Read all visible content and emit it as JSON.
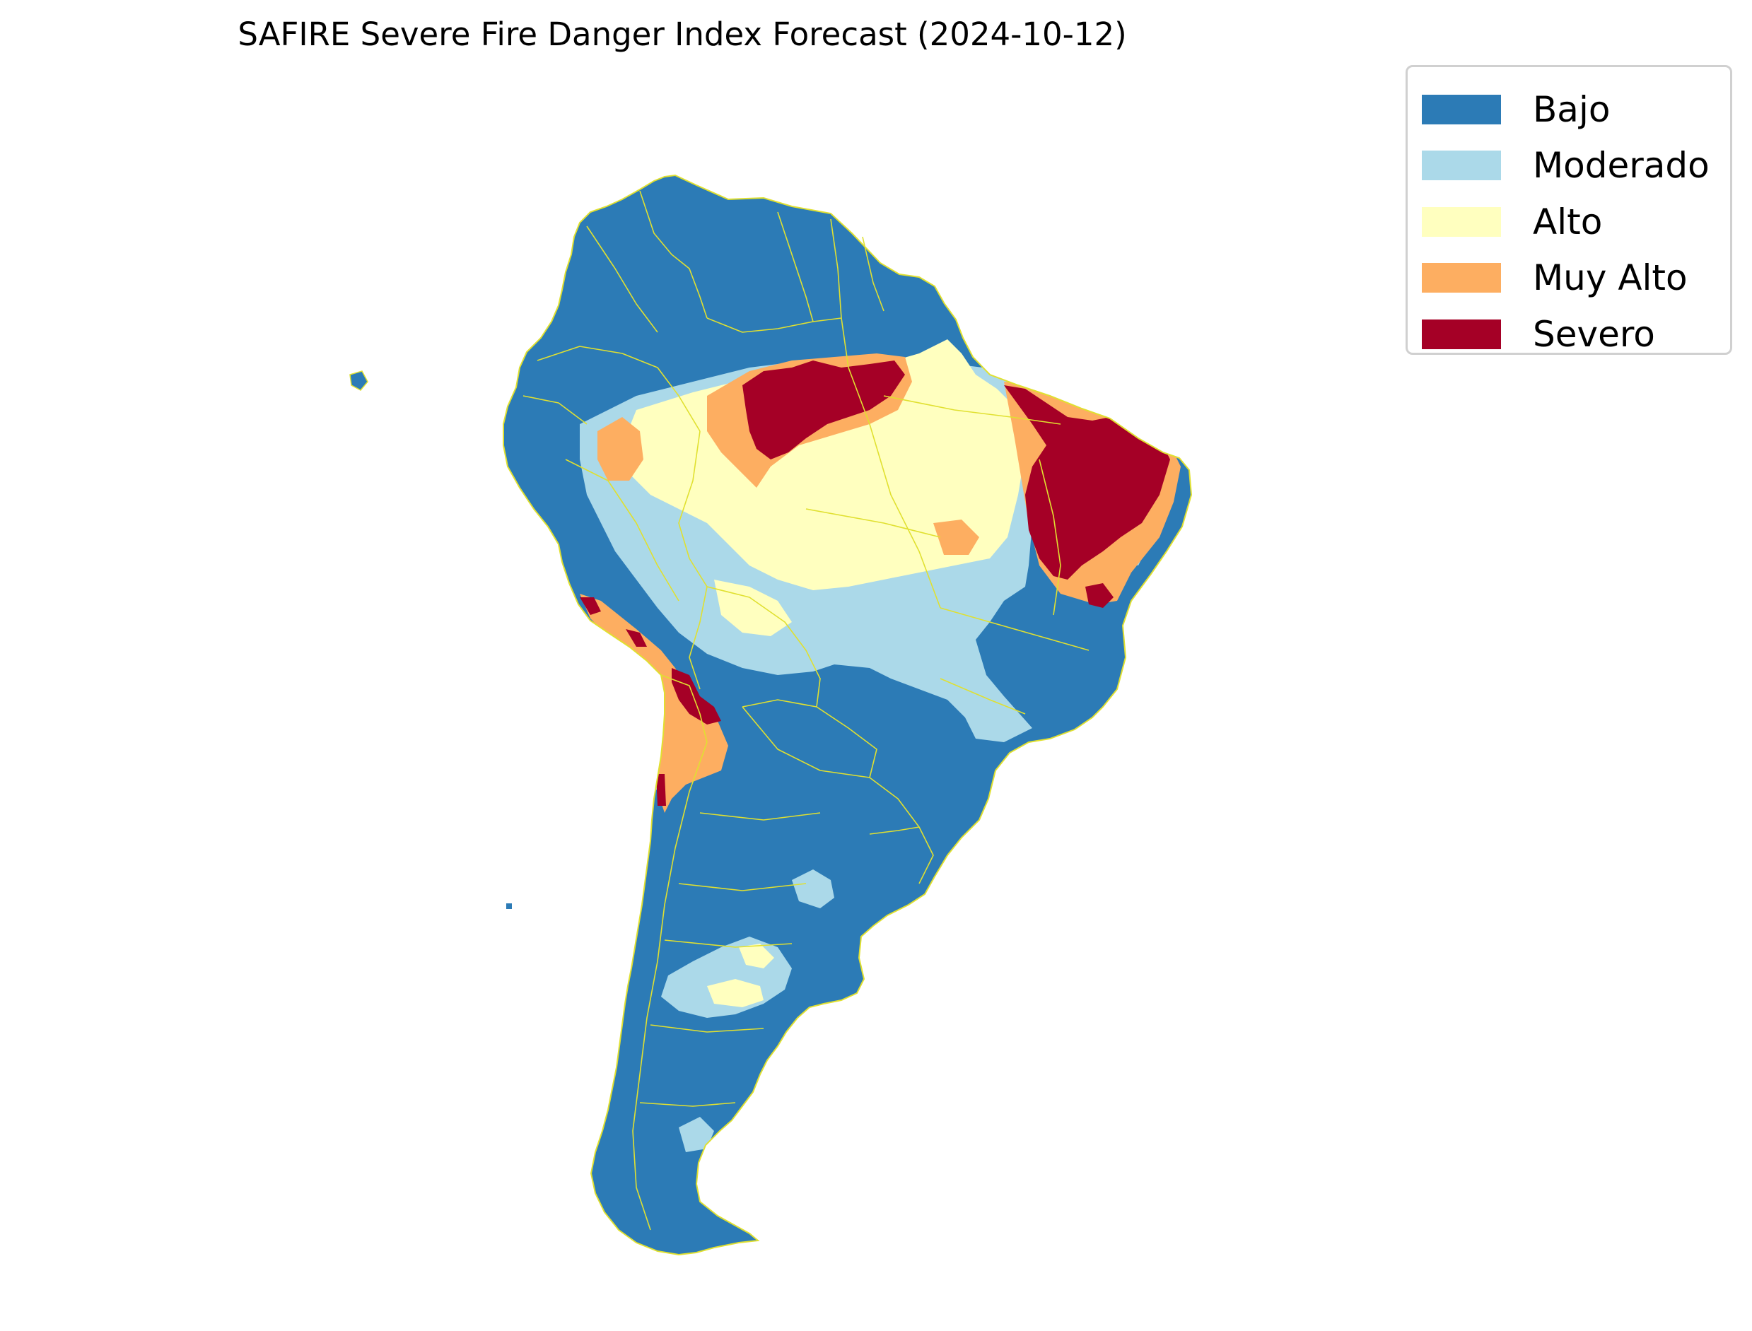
{
  "title": "SAFIRE Severe Fire Danger Index Forecast (2024-10-12)",
  "legend": {
    "items": [
      {
        "label": "Bajo",
        "color": "#2c7bb6"
      },
      {
        "label": "Moderado",
        "color": "#abd9e9"
      },
      {
        "label": "Alto",
        "color": "#ffffbf"
      },
      {
        "label": "Muy Alto",
        "color": "#fdae61"
      },
      {
        "label": "Severo",
        "color": "#a50026"
      }
    ]
  },
  "colors": {
    "border_lines": "#e0e030"
  }
}
